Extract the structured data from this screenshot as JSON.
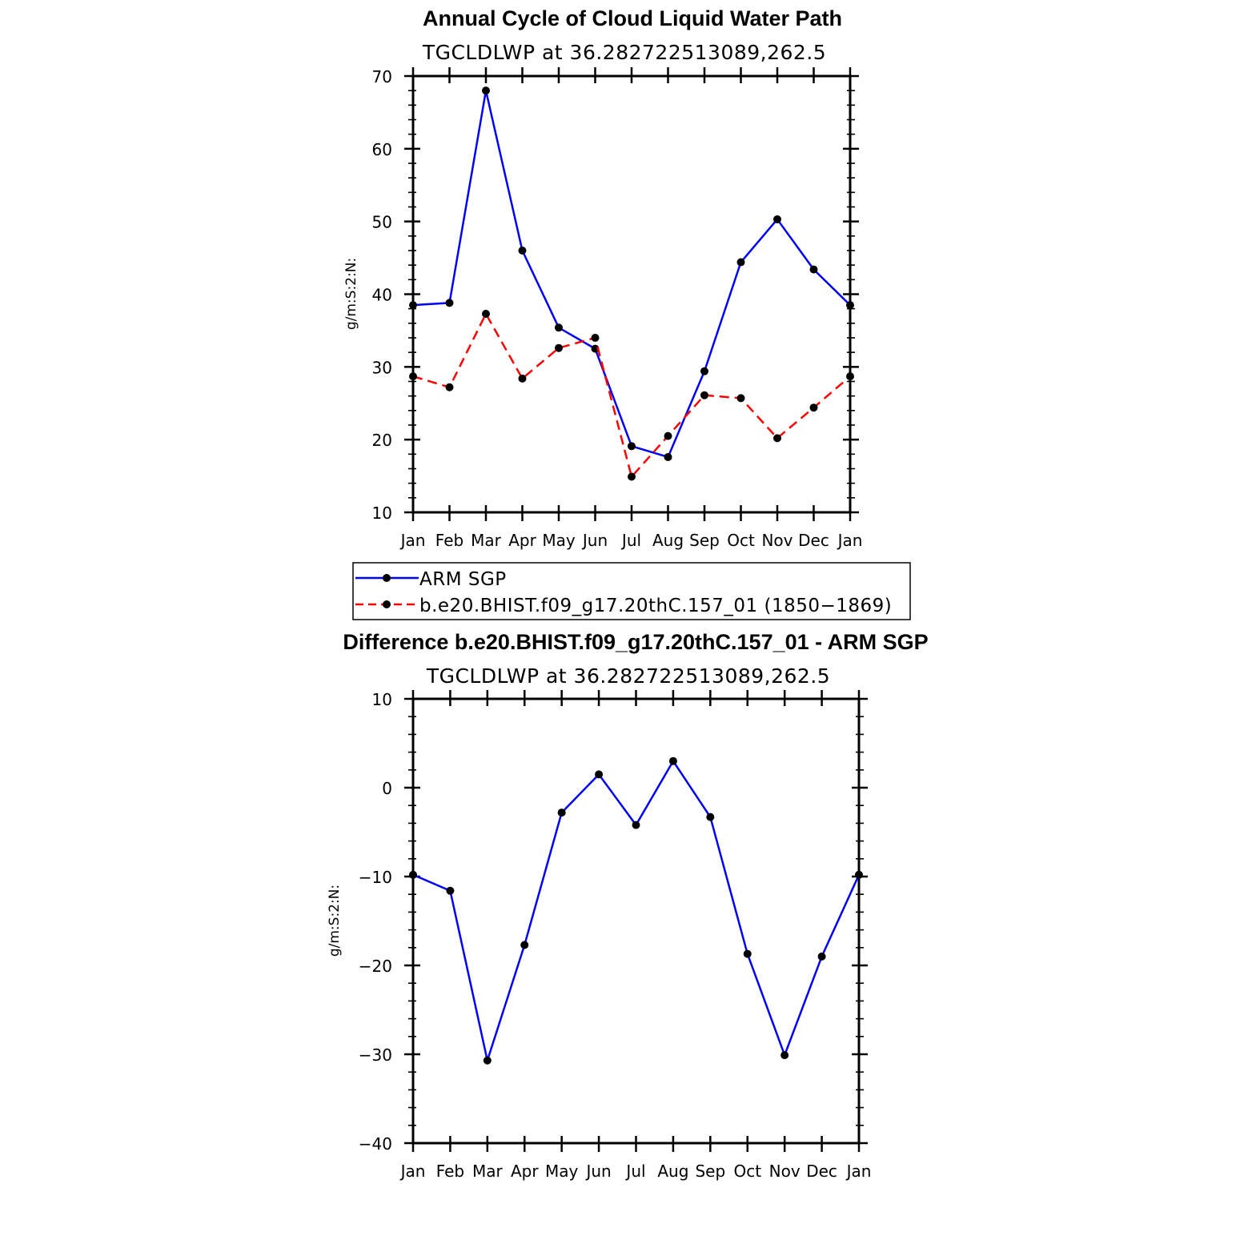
{
  "chart_data": [
    {
      "type": "line",
      "title": "Annual Cycle of Cloud Liquid Water Path",
      "subtitle": "TGCLDLWP at 36.282722513089,262.5",
      "ylabel": "g/m:S:2:N:",
      "categories": [
        "Jan",
        "Feb",
        "Mar",
        "Apr",
        "May",
        "Jun",
        "Jul",
        "Aug",
        "Sep",
        "Oct",
        "Nov",
        "Dec",
        "Jan"
      ],
      "ylim": [
        10,
        70
      ],
      "yticks": [
        10,
        20,
        30,
        40,
        50,
        60,
        70
      ],
      "yticks_labels": [
        "10",
        "20",
        "30",
        "40",
        "50",
        "60",
        "70"
      ],
      "series": [
        {
          "name": "ARM SGP",
          "color": "#0000ff",
          "dash": "solid",
          "values": [
            38.5,
            38.8,
            68.0,
            46.0,
            35.4,
            32.5,
            19.1,
            17.6,
            29.4,
            44.4,
            50.3,
            43.4,
            38.5
          ]
        },
        {
          "name": "b.e20.BHIST.f09_g17.20thC.157_01 (1850−1869)",
          "color": "#ff0000",
          "dash": "dashed",
          "values": [
            28.7,
            27.2,
            37.3,
            28.4,
            32.6,
            34.0,
            14.9,
            20.5,
            26.1,
            25.7,
            20.2,
            24.4,
            28.7
          ]
        }
      ],
      "legend": "below",
      "grid": false
    },
    {
      "type": "line",
      "title": "Difference b.e20.BHIST.f09_g17.20thC.157_01 - ARM SGP",
      "subtitle": "TGCLDLWP at 36.282722513089,262.5",
      "ylabel": "g/m:S:2:N:",
      "categories": [
        "Jan",
        "Feb",
        "Mar",
        "Apr",
        "May",
        "Jun",
        "Jul",
        "Aug",
        "Sep",
        "Oct",
        "Nov",
        "Dec",
        "Jan"
      ],
      "ylim": [
        -40,
        10
      ],
      "yticks": [
        -40,
        -30,
        -20,
        -10,
        0,
        10
      ],
      "yticks_labels": [
        "−40",
        "−30",
        "−20",
        "−10",
        "0",
        "10"
      ],
      "series": [
        {
          "color": "#0000ff",
          "dash": "solid",
          "values": [
            -9.8,
            -11.6,
            -30.7,
            -17.7,
            -2.8,
            1.5,
            -4.2,
            3.0,
            -3.3,
            -18.7,
            -30.1,
            -19.0,
            -9.8
          ]
        }
      ],
      "grid": false
    }
  ]
}
